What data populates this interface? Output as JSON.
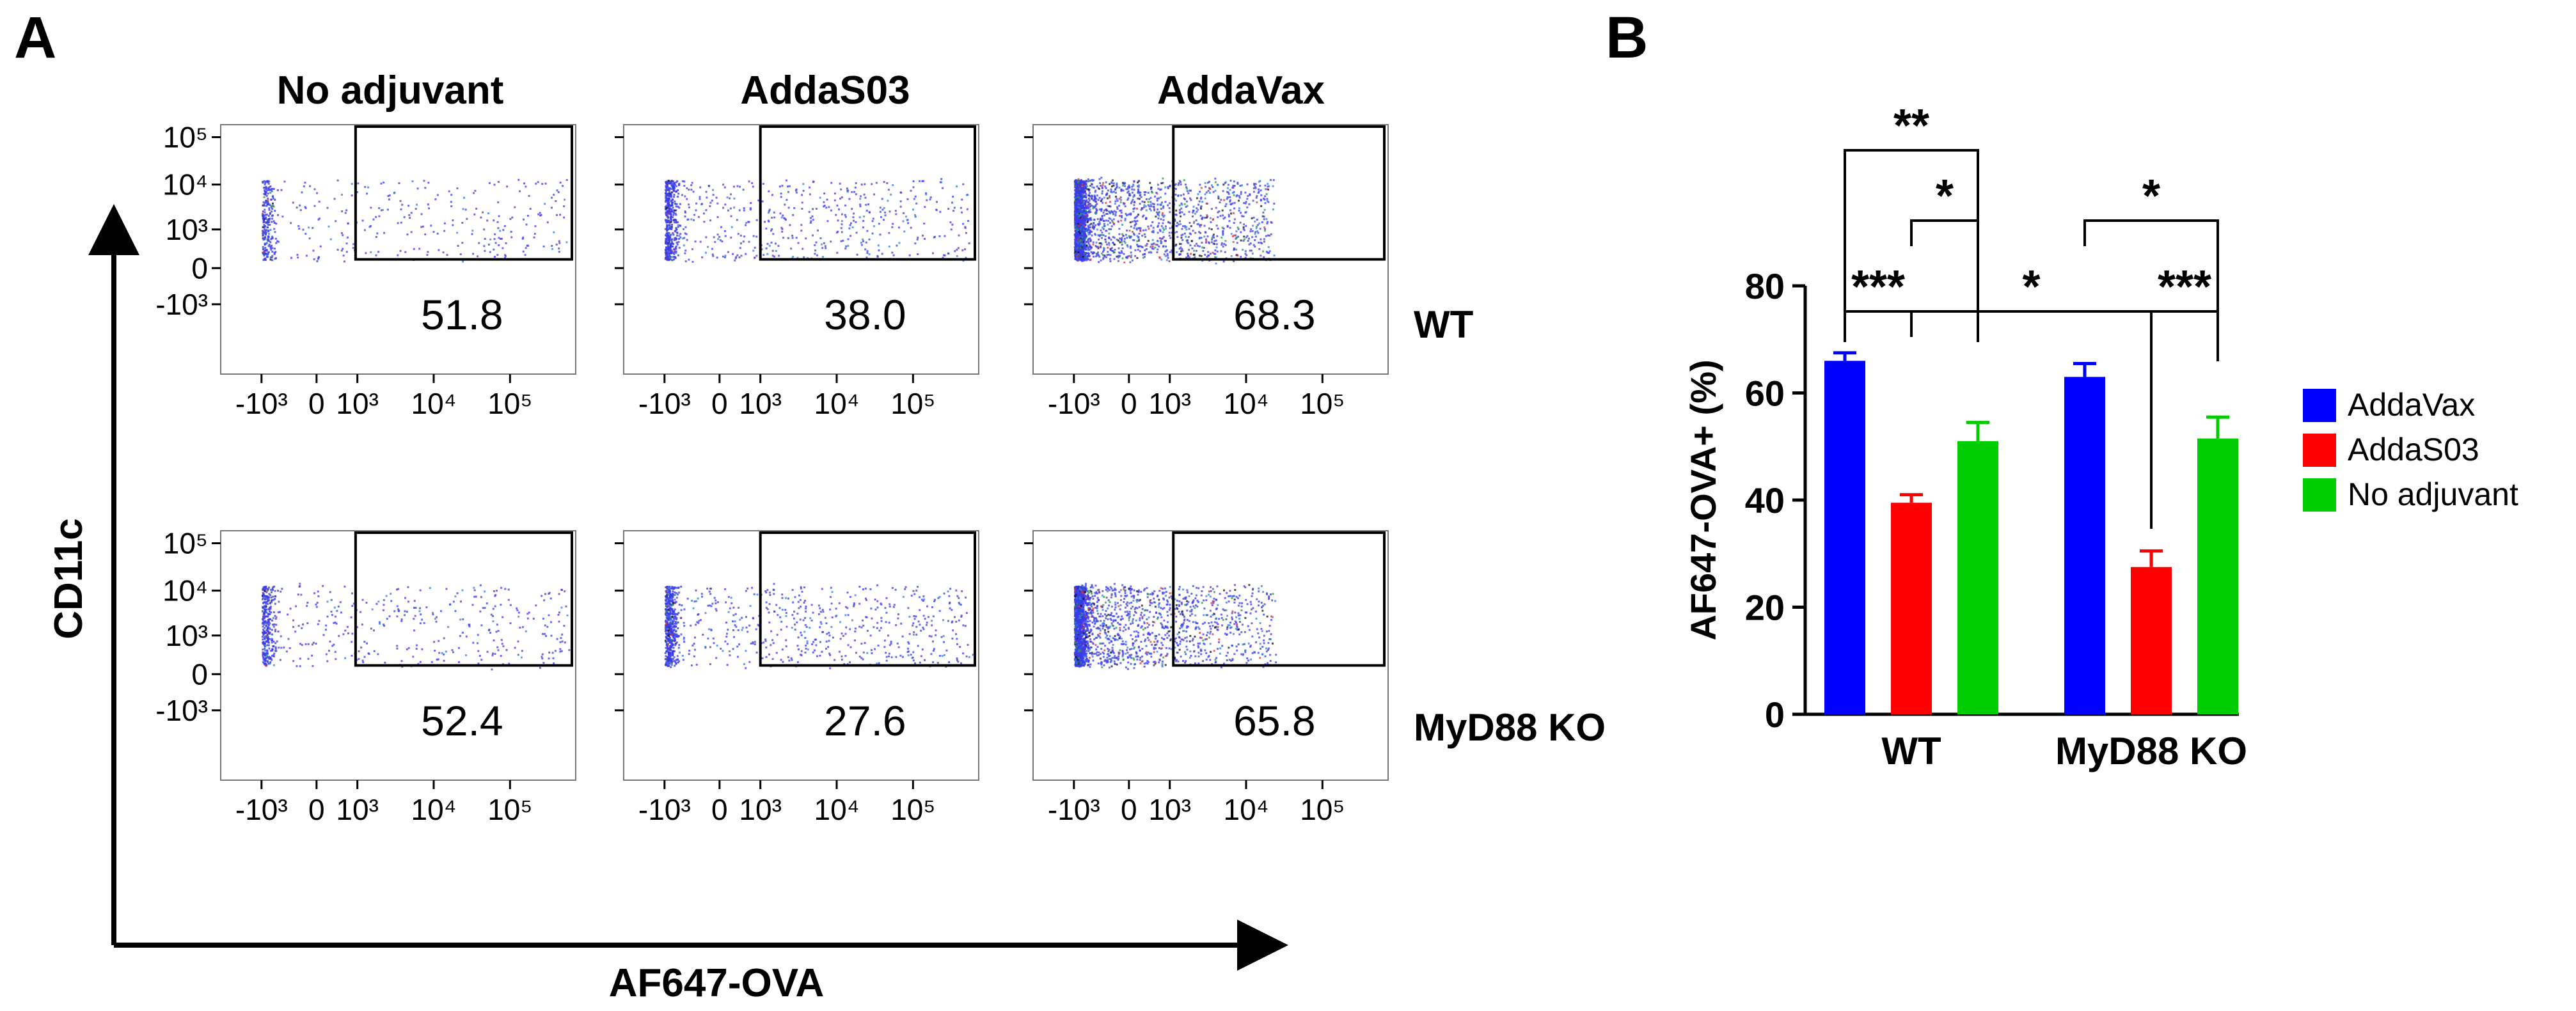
{
  "panel_a": {
    "label": "A",
    "column_titles": [
      "No adjuvant",
      "AddaS03",
      "AddaVax"
    ],
    "row_labels": [
      "WT",
      "MyD88 KO"
    ],
    "y_axis_label": "CD11c",
    "x_axis_label": "AF647-OVA",
    "y_ticks": [
      "10⁵",
      "10⁴",
      "10³",
      "0",
      "-10³"
    ],
    "x_ticks": [
      "-10³",
      "0",
      "10³",
      "10⁴",
      "10⁵"
    ],
    "gate_percentages": [
      [
        "51.8",
        "38.0",
        "68.3"
      ],
      [
        "52.4",
        "27.6",
        "65.8"
      ]
    ],
    "dot_colors": [
      "#3a3ae8",
      "#2f7de0",
      "#20a040",
      "#e03030",
      "#101010"
    ]
  },
  "panel_b": {
    "label": "B",
    "chart_data": {
      "type": "bar",
      "title": "",
      "xlabel": "",
      "ylabel": "AF647-OVA+ (%)",
      "categories": [
        "WT",
        "MyD88 KO"
      ],
      "ylim": [
        0,
        80
      ],
      "yticks": [
        0,
        20,
        40,
        60,
        80
      ],
      "series": [
        {
          "name": "AddaVax",
          "color": "#0000ff",
          "values": [
            66.0,
            63.0
          ],
          "errors": [
            1.5,
            2.5
          ]
        },
        {
          "name": "AddaS03",
          "color": "#ff0000",
          "values": [
            39.5,
            27.5
          ],
          "errors": [
            1.5,
            3.0
          ]
        },
        {
          "name": "No adjuvant",
          "color": "#00cc00",
          "values": [
            51.0,
            51.5
          ],
          "errors": [
            3.5,
            4.0
          ]
        }
      ],
      "legend": {
        "position": "right",
        "entries": [
          "AddaVax",
          "AddaS03",
          "No adjuvant"
        ]
      },
      "significance": [
        {
          "label": "**",
          "from": "WT AddaVax",
          "to": "WT No adjuvant"
        },
        {
          "label": "*",
          "from": "WT AddaS03",
          "to": "WT No adjuvant"
        },
        {
          "label": "***",
          "from": "WT AddaVax",
          "to": "WT AddaS03"
        },
        {
          "label": "*",
          "from": "WT AddaS03",
          "to": "MyD88 KO AddaS03"
        },
        {
          "label": "*",
          "from": "MyD88 KO AddaVax",
          "to": "MyD88 KO No adjuvant"
        },
        {
          "label": "***",
          "from": "MyD88 KO AddaS03",
          "to": "MyD88 KO No adjuvant"
        }
      ]
    }
  }
}
